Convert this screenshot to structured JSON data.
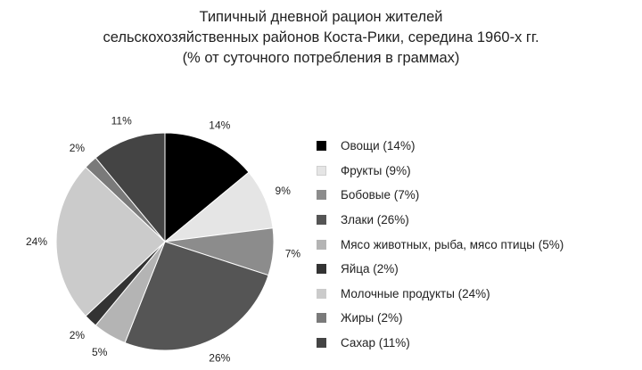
{
  "chart_data": {
    "type": "pie",
    "title": [
      "Типичный дневной рацион жителей",
      "сельскохозяйственных районов Коста-Рики, середина 1960-х гг.",
      "(% от суточного потребления в граммах)"
    ],
    "slices": [
      {
        "label": "Овощи (14%)",
        "value": 14,
        "pct_label": "14%",
        "color": "#000000"
      },
      {
        "label": "Фрукты (9%)",
        "value": 9,
        "pct_label": "9%",
        "color": "#e5e5e5"
      },
      {
        "label": "Бобовые (7%)",
        "value": 7,
        "pct_label": "7%",
        "color": "#8c8c8c"
      },
      {
        "label": "Злаки (26%)",
        "value": 26,
        "pct_label": "26%",
        "color": "#555555"
      },
      {
        "label": "Мясо животных, рыба, мясо птицы (5%)",
        "value": 5,
        "pct_label": "5%",
        "color": "#b4b4b4"
      },
      {
        "label": "Яйца (2%)",
        "value": 2,
        "pct_label": "2%",
        "color": "#333333"
      },
      {
        "label": "Молочные продукты (24%)",
        "value": 24,
        "pct_label": "24%",
        "color": "#cbcbcb"
      },
      {
        "label": "Жиры (2%)",
        "value": 2,
        "pct_label": "2%",
        "color": "#7a7a7a"
      },
      {
        "label": "Сахар (11%)",
        "value": 11,
        "pct_label": "11%",
        "color": "#444444"
      }
    ],
    "start_angle_deg": 0,
    "direction": "clockwise",
    "legend_position": "right"
  }
}
